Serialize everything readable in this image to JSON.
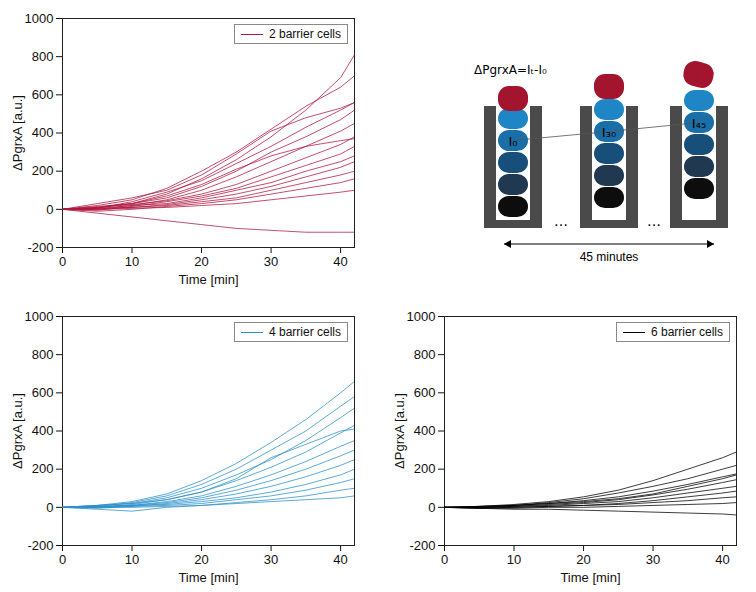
{
  "chart_data": [
    {
      "type": "line",
      "xlabel": "Time [min]",
      "ylabel": "ΔPgrxA [a.u.]",
      "xlim": [
        0,
        42
      ],
      "xticks": [
        0,
        10,
        20,
        30,
        40
      ],
      "ylim": [
        -200,
        1000
      ],
      "yticks": [
        -200,
        0,
        200,
        400,
        600,
        800,
        1000
      ],
      "grid": false,
      "legend": "upper right",
      "x": [
        0,
        5,
        10,
        15,
        20,
        25,
        30,
        35,
        40,
        42
      ],
      "series": [
        {
          "name": "2 barrier cells",
          "color": "#b0173f",
          "values": [
            [
              0,
              10,
              30,
              80,
              160,
              260,
              380,
              520,
              690,
              810
            ],
            [
              0,
              20,
              50,
              110,
              200,
              300,
              420,
              540,
              640,
              700
            ],
            [
              0,
              5,
              40,
              90,
              150,
              240,
              330,
              430,
              520,
              560
            ],
            [
              0,
              15,
              30,
              60,
              120,
              200,
              300,
              380,
              470,
              520
            ],
            [
              0,
              0,
              20,
              50,
              100,
              170,
              250,
              330,
              410,
              450
            ],
            [
              0,
              10,
              25,
              45,
              80,
              130,
              200,
              270,
              340,
              380
            ],
            [
              0,
              -5,
              15,
              40,
              70,
              110,
              170,
              230,
              290,
              330
            ],
            [
              0,
              5,
              20,
              30,
              60,
              100,
              140,
              200,
              250,
              280
            ],
            [
              0,
              0,
              10,
              25,
              50,
              80,
              120,
              170,
              220,
              250
            ],
            [
              0,
              5,
              10,
              20,
              40,
              60,
              100,
              140,
              180,
              200
            ],
            [
              0,
              -10,
              0,
              15,
              30,
              50,
              80,
              110,
              140,
              160
            ],
            [
              0,
              0,
              5,
              10,
              20,
              30,
              50,
              70,
              90,
              100
            ],
            [
              0,
              -20,
              -40,
              -60,
              -80,
              -100,
              -110,
              -120,
              -120,
              -120
            ],
            [
              0,
              10,
              30,
              70,
              130,
              210,
              280,
              330,
              360,
              370
            ],
            [
              0,
              30,
              60,
              100,
              180,
              290,
              410,
              480,
              530,
              560
            ]
          ]
        }
      ]
    },
    {
      "type": "line",
      "xlabel": "Time [min]",
      "ylabel": "ΔPgrxA [a.u.]",
      "xlim": [
        0,
        42
      ],
      "xticks": [
        0,
        10,
        20,
        30,
        40
      ],
      "ylim": [
        -200,
        1000
      ],
      "yticks": [
        -200,
        0,
        200,
        400,
        600,
        800,
        1000
      ],
      "grid": false,
      "legend": "upper right",
      "x": [
        0,
        5,
        10,
        15,
        20,
        25,
        30,
        35,
        40,
        42
      ],
      "series": [
        {
          "name": "4 barrier cells",
          "color": "#2b8fcb",
          "values": [
            [
              0,
              10,
              30,
              70,
              140,
              230,
              340,
              460,
              600,
              660
            ],
            [
              0,
              5,
              25,
              60,
              120,
              200,
              300,
              400,
              530,
              580
            ],
            [
              0,
              10,
              20,
              50,
              100,
              170,
              250,
              350,
              470,
              520
            ],
            [
              0,
              0,
              15,
              40,
              80,
              140,
              210,
              290,
              390,
              430
            ],
            [
              0,
              5,
              10,
              30,
              60,
              110,
              170,
              240,
              320,
              350
            ],
            [
              0,
              0,
              10,
              25,
              50,
              90,
              140,
              200,
              270,
              300
            ],
            [
              0,
              -5,
              5,
              20,
              40,
              70,
              110,
              160,
              220,
              250
            ],
            [
              0,
              5,
              10,
              15,
              30,
              50,
              80,
              120,
              170,
              200
            ],
            [
              0,
              0,
              5,
              10,
              20,
              40,
              60,
              90,
              130,
              150
            ],
            [
              0,
              -10,
              -20,
              0,
              10,
              25,
              40,
              60,
              90,
              100
            ],
            [
              0,
              0,
              0,
              5,
              10,
              20,
              30,
              40,
              50,
              60
            ],
            [
              0,
              10,
              20,
              40,
              80,
              150,
              260,
              330,
              400,
              410
            ]
          ]
        }
      ]
    },
    {
      "type": "line",
      "xlabel": "Time [min]",
      "ylabel": "ΔPgrxA [a.u.]",
      "xlim": [
        0,
        42
      ],
      "xticks": [
        0,
        10,
        20,
        30,
        40
      ],
      "ylim": [
        -200,
        1000
      ],
      "yticks": [
        -200,
        0,
        200,
        400,
        600,
        800,
        1000
      ],
      "grid": false,
      "legend": "upper right",
      "x": [
        0,
        5,
        10,
        15,
        20,
        25,
        30,
        35,
        40,
        42
      ],
      "series": [
        {
          "name": "6 barrier cells",
          "color": "#000000",
          "values": [
            [
              0,
              5,
              15,
              30,
              55,
              90,
              140,
              200,
              260,
              290
            ],
            [
              0,
              0,
              10,
              25,
              45,
              75,
              110,
              150,
              200,
              220
            ],
            [
              0,
              5,
              10,
              20,
              35,
              55,
              85,
              120,
              160,
              175
            ],
            [
              0,
              0,
              5,
              15,
              25,
              40,
              65,
              95,
              130,
              145
            ],
            [
              0,
              0,
              5,
              10,
              20,
              30,
              50,
              75,
              100,
              110
            ],
            [
              0,
              -5,
              0,
              5,
              10,
              20,
              35,
              55,
              75,
              85
            ],
            [
              0,
              0,
              0,
              5,
              10,
              15,
              25,
              35,
              50,
              55
            ],
            [
              0,
              -5,
              -5,
              0,
              0,
              5,
              10,
              15,
              20,
              25
            ],
            [
              0,
              -5,
              -10,
              -10,
              -15,
              -20,
              -25,
              -30,
              -35,
              -40
            ],
            [
              0,
              5,
              10,
              20,
              30,
              45,
              70,
              110,
              150,
              170
            ]
          ]
        }
      ]
    }
  ],
  "schematic": {
    "formula": "ΔPgrxA=Iₜ-I₀",
    "labels": [
      "I₀",
      "I₃₀",
      "I₄₅"
    ],
    "gap_mark": "…",
    "duration": "45 minutes"
  }
}
